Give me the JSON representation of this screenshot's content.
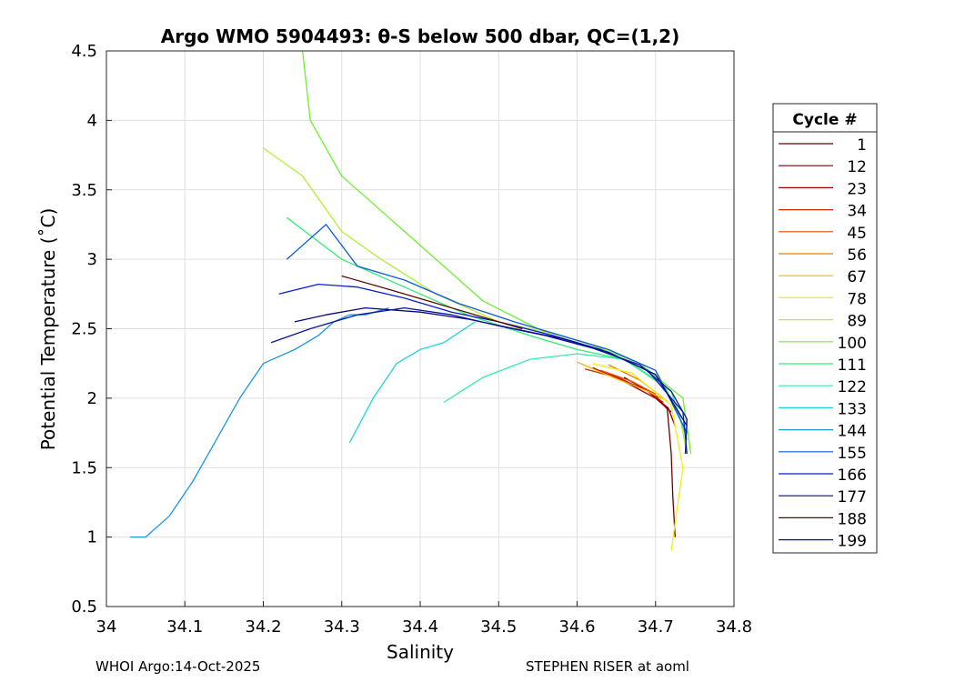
{
  "chart_data": {
    "type": "line",
    "title": "Argo WMO 5904493: θ-S below 500 dbar,  QC=(1,2)",
    "xlabel": "Salinity",
    "ylabel": "Potential Temperature (˚C)",
    "xlim": [
      34.0,
      34.8
    ],
    "ylim": [
      0.5,
      4.5
    ],
    "xticks": [
      "34",
      "34.1",
      "34.2",
      "34.3",
      "34.4",
      "34.5",
      "34.6",
      "34.7",
      "34.8"
    ],
    "yticks": [
      "0.5",
      "1",
      "1.5",
      "2",
      "2.5",
      "3",
      "3.5",
      "4",
      "4.5"
    ],
    "grid": true,
    "legend": {
      "title": "Cycle #",
      "placement": "right",
      "entries": [
        {
          "label": "1",
          "color": "#6b0000"
        },
        {
          "label": "12",
          "color": "#7a0000"
        },
        {
          "label": "23",
          "color": "#a00000"
        },
        {
          "label": "34",
          "color": "#d42a00"
        },
        {
          "label": "45",
          "color": "#f04a00"
        },
        {
          "label": "56",
          "color": "#f07a00"
        },
        {
          "label": "67",
          "color": "#f0b400"
        },
        {
          "label": "78",
          "color": "#f4ee10"
        },
        {
          "label": "89",
          "color": "#b4ee30"
        },
        {
          "label": "100",
          "color": "#70ee30"
        },
        {
          "label": "111",
          "color": "#30ee70"
        },
        {
          "label": "122",
          "color": "#30eeb0"
        },
        {
          "label": "133",
          "color": "#20d4e0"
        },
        {
          "label": "144",
          "color": "#1c96dc"
        },
        {
          "label": "155",
          "color": "#0a5adc"
        },
        {
          "label": "166",
          "color": "#0a1ec8"
        },
        {
          "label": "177",
          "color": "#08087a"
        },
        {
          "label": "188",
          "color": "#5a0a0a"
        },
        {
          "label": "199",
          "color": "#0a14a0"
        }
      ]
    },
    "series": [
      {
        "name": "1",
        "color": "#6b0000",
        "s": [
          34.66,
          34.7,
          34.715,
          34.72,
          34.722,
          34.725
        ],
        "t": [
          2.15,
          2.02,
          1.92,
          1.6,
          1.3,
          1.0
        ]
      },
      {
        "name": "12",
        "color": "#7a0000",
        "s": [
          34.64,
          34.69,
          34.716,
          34.725
        ],
        "t": [
          2.18,
          2.05,
          1.93,
          1.8
        ]
      },
      {
        "name": "23",
        "color": "#a00000",
        "s": [
          34.62,
          34.66,
          34.7,
          34.72
        ],
        "t": [
          2.22,
          2.12,
          2.0,
          1.9
        ]
      },
      {
        "name": "34",
        "color": "#d42a00",
        "s": [
          34.61,
          34.65,
          34.69,
          34.71
        ],
        "t": [
          2.21,
          2.15,
          2.05,
          1.97
        ]
      },
      {
        "name": "45",
        "color": "#f04a00",
        "s": [
          34.63,
          34.67,
          34.7
        ],
        "t": [
          2.2,
          2.12,
          2.03
        ]
      },
      {
        "name": "56",
        "color": "#f07a00",
        "s": [
          34.64,
          34.68,
          34.71
        ],
        "t": [
          2.24,
          2.13,
          2.0
        ]
      },
      {
        "name": "67",
        "color": "#f0b400",
        "s": [
          34.6,
          34.65,
          34.69,
          34.715
        ],
        "t": [
          2.26,
          2.14,
          2.05,
          1.98
        ]
      },
      {
        "name": "78",
        "color": "#f4ee10",
        "s": [
          34.62,
          34.67,
          34.72,
          34.735,
          34.72
        ],
        "t": [
          2.25,
          2.18,
          1.95,
          1.5,
          0.9
        ]
      },
      {
        "name": "89",
        "color": "#b4ee30",
        "s": [
          34.2,
          34.25,
          34.3,
          34.35,
          34.42,
          34.5,
          34.58,
          34.64,
          34.7,
          34.73,
          34.74
        ],
        "t": [
          3.8,
          3.6,
          3.2,
          3.0,
          2.75,
          2.55,
          2.45,
          2.35,
          2.2,
          1.9,
          1.6
        ]
      },
      {
        "name": "100",
        "color": "#70ee30",
        "s": [
          34.25,
          34.26,
          34.3,
          34.36,
          34.42,
          34.48,
          34.55,
          34.62,
          34.68,
          34.735,
          34.745
        ],
        "t": [
          4.5,
          4.0,
          3.6,
          3.3,
          3.0,
          2.7,
          2.5,
          2.38,
          2.25,
          2.0,
          1.6
        ]
      },
      {
        "name": "111",
        "color": "#30ee70",
        "s": [
          34.23,
          34.3,
          34.38,
          34.46,
          34.54,
          34.6,
          34.66,
          34.72,
          34.74
        ],
        "t": [
          3.3,
          3.0,
          2.8,
          2.6,
          2.45,
          2.35,
          2.28,
          2.05,
          1.7
        ]
      },
      {
        "name": "122",
        "color": "#30eeb0",
        "s": [
          34.43,
          34.48,
          34.54,
          34.6,
          34.66,
          34.71,
          34.74
        ],
        "t": [
          1.97,
          2.15,
          2.28,
          2.32,
          2.28,
          2.1,
          1.75
        ]
      },
      {
        "name": "133",
        "color": "#20d4e0",
        "s": [
          34.31,
          34.34,
          34.37,
          34.4,
          34.43,
          34.47
        ],
        "t": [
          1.68,
          2.0,
          2.25,
          2.35,
          2.4,
          2.55
        ]
      },
      {
        "name": "144",
        "color": "#1c96dc",
        "s": [
          34.03,
          34.05,
          34.08,
          34.11,
          34.14,
          34.17,
          34.2,
          34.24,
          34.27,
          34.29,
          34.31,
          34.33,
          34.36
        ],
        "t": [
          1.0,
          1.0,
          1.15,
          1.4,
          1.7,
          2.0,
          2.25,
          2.35,
          2.45,
          2.55,
          2.6,
          2.6,
          2.65
        ]
      },
      {
        "name": "155",
        "color": "#0a5adc",
        "s": [
          34.23,
          34.25,
          34.28,
          34.32,
          34.38,
          34.45,
          34.52,
          34.58,
          34.64,
          34.7,
          34.74
        ],
        "t": [
          3.0,
          3.1,
          3.25,
          2.95,
          2.85,
          2.68,
          2.55,
          2.45,
          2.35,
          2.2,
          1.75
        ]
      },
      {
        "name": "166",
        "color": "#0a1ec8",
        "s": [
          34.22,
          34.27,
          34.32,
          34.38,
          34.44,
          34.5,
          34.57,
          34.63,
          34.69,
          34.735,
          34.74
        ],
        "t": [
          2.75,
          2.82,
          2.8,
          2.72,
          2.62,
          2.55,
          2.45,
          2.35,
          2.2,
          1.9,
          1.6
        ]
      },
      {
        "name": "177",
        "color": "#08087a",
        "s": [
          34.24,
          34.28,
          34.33,
          34.4,
          34.46,
          34.52,
          34.58,
          34.64,
          34.7,
          34.74
        ],
        "t": [
          2.55,
          2.6,
          2.65,
          2.62,
          2.57,
          2.5,
          2.43,
          2.33,
          2.17,
          1.8
        ]
      },
      {
        "name": "188",
        "color": "#5a0a0a",
        "s": [
          34.3,
          34.35,
          34.41,
          34.47,
          34.53
        ],
        "t": [
          2.88,
          2.8,
          2.7,
          2.6,
          2.5
        ]
      },
      {
        "name": "199",
        "color": "#0a14a0",
        "s": [
          34.21,
          34.26,
          34.32,
          34.38,
          34.44,
          34.5,
          34.56,
          34.62,
          34.68,
          34.72,
          34.74,
          34.738
        ],
        "t": [
          2.4,
          2.5,
          2.6,
          2.65,
          2.6,
          2.52,
          2.45,
          2.36,
          2.24,
          2.05,
          1.85,
          1.6
        ]
      }
    ]
  },
  "footer": {
    "left": "WHOI Argo:14-Oct-2025",
    "right": "STEPHEN RISER at aoml"
  }
}
